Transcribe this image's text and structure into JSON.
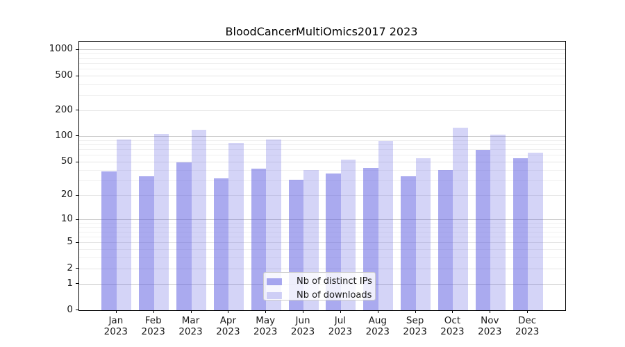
{
  "chart_data": {
    "type": "bar",
    "title": "BloodCancerMultiOmics2017 2023",
    "categories": [
      "Jan 2023",
      "Feb 2023",
      "Mar 2023",
      "Apr 2023",
      "May 2023",
      "Jun 2023",
      "Jul 2023",
      "Aug 2023",
      "Sep 2023",
      "Oct 2023",
      "Nov 2023",
      "Dec 2023"
    ],
    "series": [
      {
        "name": "Nb of distinct IPs",
        "color": "rgba(85,85,224,0.5)",
        "values": [
          39,
          34,
          50,
          32,
          42,
          31,
          37,
          43,
          34,
          40,
          70,
          55
        ]
      },
      {
        "name": "Nb of downloads",
        "color": "rgba(85,85,224,0.25)",
        "values": [
          92,
          106,
          119,
          84,
          92,
          40,
          53,
          89,
          55,
          125,
          105,
          65
        ]
      }
    ],
    "xlabel": "",
    "ylabel": "",
    "y_scale": "log10(value+1)",
    "y_ticks": [
      0,
      1,
      2,
      5,
      10,
      20,
      50,
      100,
      200,
      500,
      1000
    ],
    "ylim": [
      0,
      1200
    ],
    "grid": true,
    "legend_position": "inside-bottom-center",
    "colors": {
      "bar_base": "#5555e0",
      "grid_major": "#c6c6c6",
      "grid_medium": "#e4e4e4",
      "grid_minor": "#f0f0f0",
      "axis": "#000000"
    },
    "grid_major_values": [
      1,
      10,
      100,
      1000
    ],
    "grid_medium_values": [
      2,
      5,
      20,
      50,
      200,
      500
    ],
    "grid_minor_values": [
      3,
      4,
      6,
      7,
      8,
      9,
      30,
      40,
      60,
      70,
      80,
      90,
      300,
      400,
      600,
      700,
      800,
      900
    ]
  }
}
